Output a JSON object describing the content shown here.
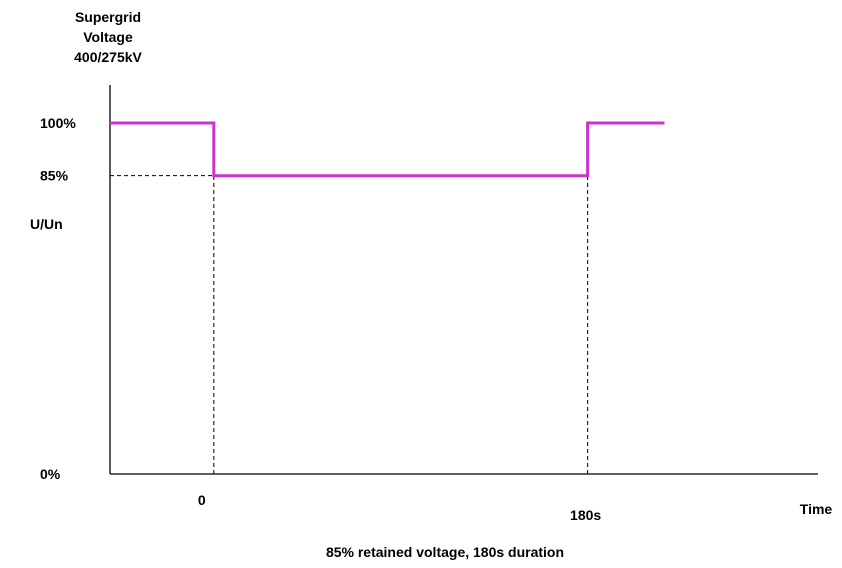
{
  "chart_data": {
    "type": "line",
    "ylabel_lines": [
      "Supergrid",
      "Voltage",
      "400/275kV"
    ],
    "ylabel_axis": "U/Un",
    "xlabel": "Time",
    "caption": "85% retained voltage, 180s duration",
    "y_ticks": [
      {
        "value": 100,
        "label": "100%"
      },
      {
        "value": 85,
        "label": "85%"
      },
      {
        "value": 0,
        "label": "0%"
      }
    ],
    "x_ticks": [
      {
        "value": 0,
        "label": "0"
      },
      {
        "value": 180,
        "label": "180s"
      }
    ],
    "xlim": [
      -50,
      250
    ],
    "ylim": [
      0,
      100
    ],
    "series": [
      {
        "color": "#cc33cc",
        "points": [
          {
            "x": -50,
            "y": 100
          },
          {
            "x": 0,
            "y": 100
          },
          {
            "x": 0,
            "y": 85
          },
          {
            "x": 180,
            "y": 85
          },
          {
            "x": 180,
            "y": 100
          },
          {
            "x": 217,
            "y": 100
          }
        ]
      }
    ],
    "reference_lines": [
      {
        "type": "horizontal",
        "y": 85,
        "x_from": -50,
        "x_to": 0
      },
      {
        "type": "vertical",
        "x": 0,
        "y_from": 0,
        "y_to": 85
      },
      {
        "type": "vertical",
        "x": 180,
        "y_from": 0,
        "y_to": 85
      }
    ]
  }
}
